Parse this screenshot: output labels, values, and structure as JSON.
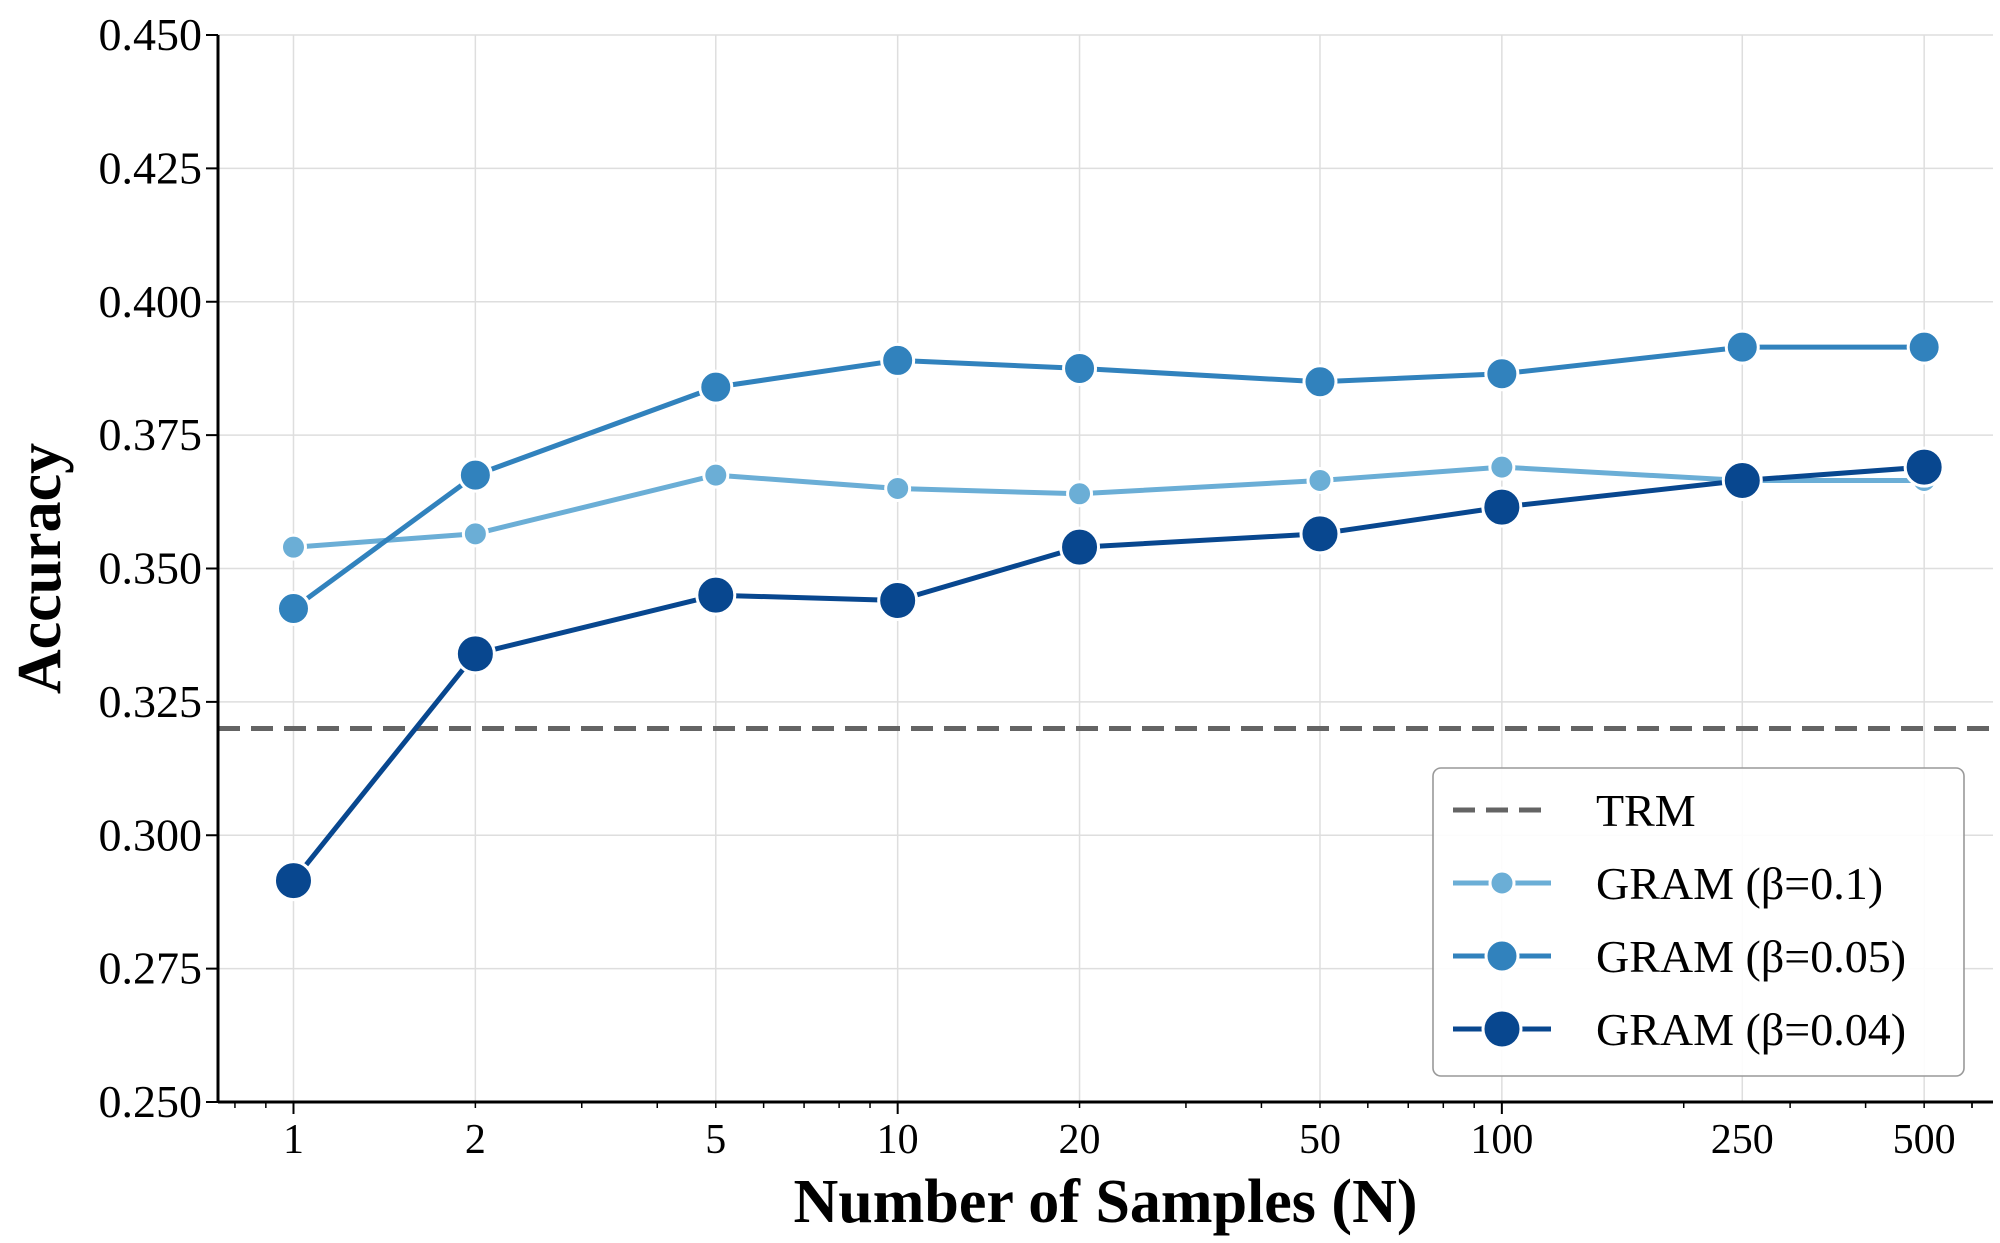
{
  "chart_data": {
    "type": "line",
    "xlabel": "Number of Samples (N)",
    "ylabel": "Accuracy",
    "xscale": "log",
    "x": [
      1,
      2,
      5,
      10,
      20,
      50,
      100,
      250,
      500
    ],
    "xticks": [
      "1",
      "2",
      "5",
      "10",
      "20",
      "50",
      "100",
      "250",
      "500"
    ],
    "ylim": [
      0.25,
      0.45
    ],
    "yticks": [
      "0.250",
      "0.275",
      "0.300",
      "0.325",
      "0.350",
      "0.375",
      "0.400",
      "0.425",
      "0.450"
    ],
    "grid": true,
    "legend_position": "bottom-right",
    "reference_line": {
      "name": "TRM",
      "value": 0.32,
      "color": "#646464",
      "style": "dashed"
    },
    "series": [
      {
        "name": "GRAM (β=0.1)",
        "color": "#6baed6",
        "marker": "small",
        "values": [
          0.354,
          0.3565,
          0.3675,
          0.365,
          0.364,
          0.3665,
          0.369,
          0.3665,
          0.3665
        ]
      },
      {
        "name": "GRAM (β=0.05)",
        "color": "#3182bd",
        "marker": "medium",
        "values": [
          0.3425,
          0.3675,
          0.384,
          0.389,
          0.3875,
          0.385,
          0.3865,
          0.3915,
          0.3915
        ]
      },
      {
        "name": "GRAM (β=0.04)",
        "color": "#08478f",
        "marker": "large",
        "values": [
          0.2915,
          0.334,
          0.345,
          0.344,
          0.354,
          0.3565,
          0.3615,
          0.3665,
          0.369
        ]
      }
    ]
  }
}
